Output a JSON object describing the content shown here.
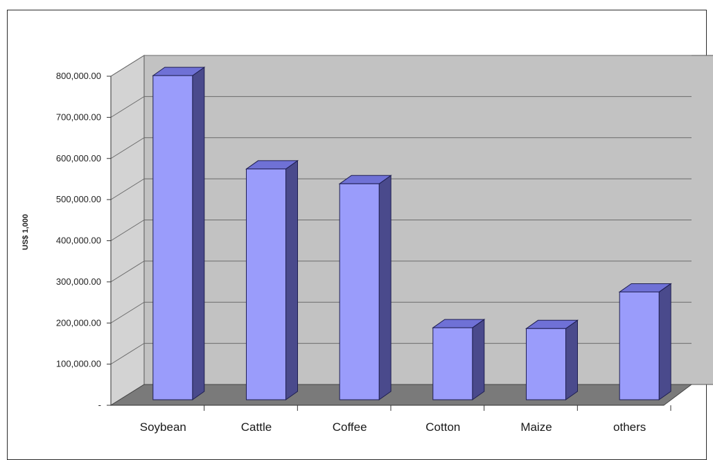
{
  "chart_data": {
    "type": "bar",
    "style": "3d-column",
    "title": "",
    "xlabel": "",
    "ylabel": "US$ 1,000",
    "categories": [
      "Soybean",
      "Cattle",
      "Coffee",
      "Cotton",
      "Maize",
      "others"
    ],
    "values": [
      788000,
      561000,
      525000,
      175000,
      173000,
      262000
    ],
    "ylim": [
      0,
      800000
    ],
    "yticks": [
      "-",
      "100,000.00",
      "200,000.00",
      "300,000.00",
      "400,000.00",
      "500,000.00",
      "600,000.00",
      "700,000.00",
      "800,000.00"
    ],
    "grid": true,
    "legend": "none",
    "colors": {
      "bar_front": "#9a9cfb",
      "bar_side": "#4a4a8c",
      "bar_top": "#6f71d6",
      "back_wall": "#c2c2c2",
      "side_wall": "#d3d3d3",
      "floor": "#7a7a7a"
    }
  }
}
